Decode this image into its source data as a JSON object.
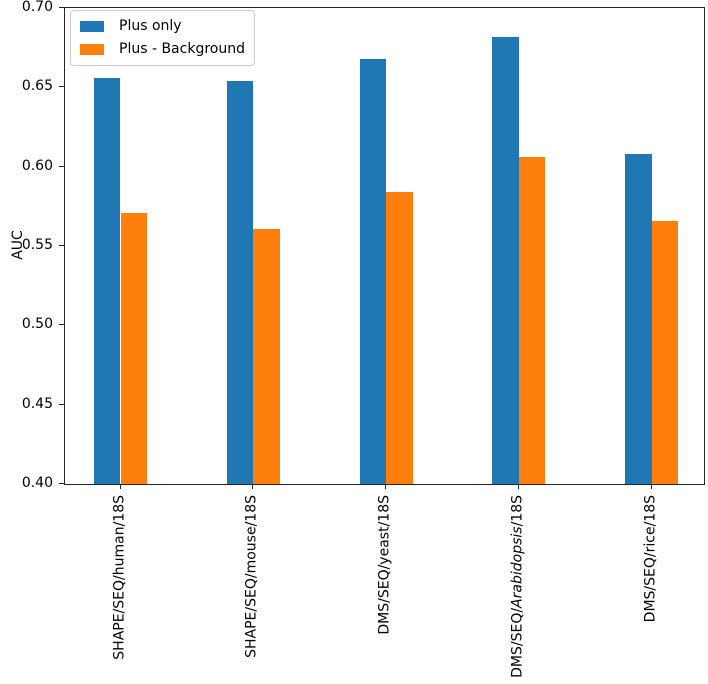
{
  "chart_data": {
    "type": "bar",
    "title": "",
    "xlabel": "",
    "ylabel": "AUC",
    "ylim": [
      0.4,
      0.7
    ],
    "yticks": [
      0.4,
      0.45,
      0.5,
      0.55,
      0.6,
      0.65,
      0.7
    ],
    "ytick_labels": [
      "0.40",
      "0.45",
      "0.50",
      "0.55",
      "0.60",
      "0.65",
      "0.70"
    ],
    "grid": false,
    "legend_position": "upper left",
    "categories": [
      {
        "text": "SHAPE/SEQ/human/18S"
      },
      {
        "text": "SHAPE/SEQ/mouse/18S"
      },
      {
        "text": "DMS/SEQ/yeast/18S"
      },
      {
        "text": "DMS/SEQ/Arabidopsis/18S",
        "italic_segment": "Arabidopsis"
      },
      {
        "text": "DMS/SEQ/rice/18S"
      }
    ],
    "series": [
      {
        "name": "Plus only",
        "color": "#1f77b4",
        "values": [
          0.656,
          0.654,
          0.668,
          0.682,
          0.608
        ]
      },
      {
        "name": "Plus - Background",
        "color": "#ff7f0e",
        "values": [
          0.571,
          0.561,
          0.584,
          0.606,
          0.566
        ]
      }
    ]
  }
}
